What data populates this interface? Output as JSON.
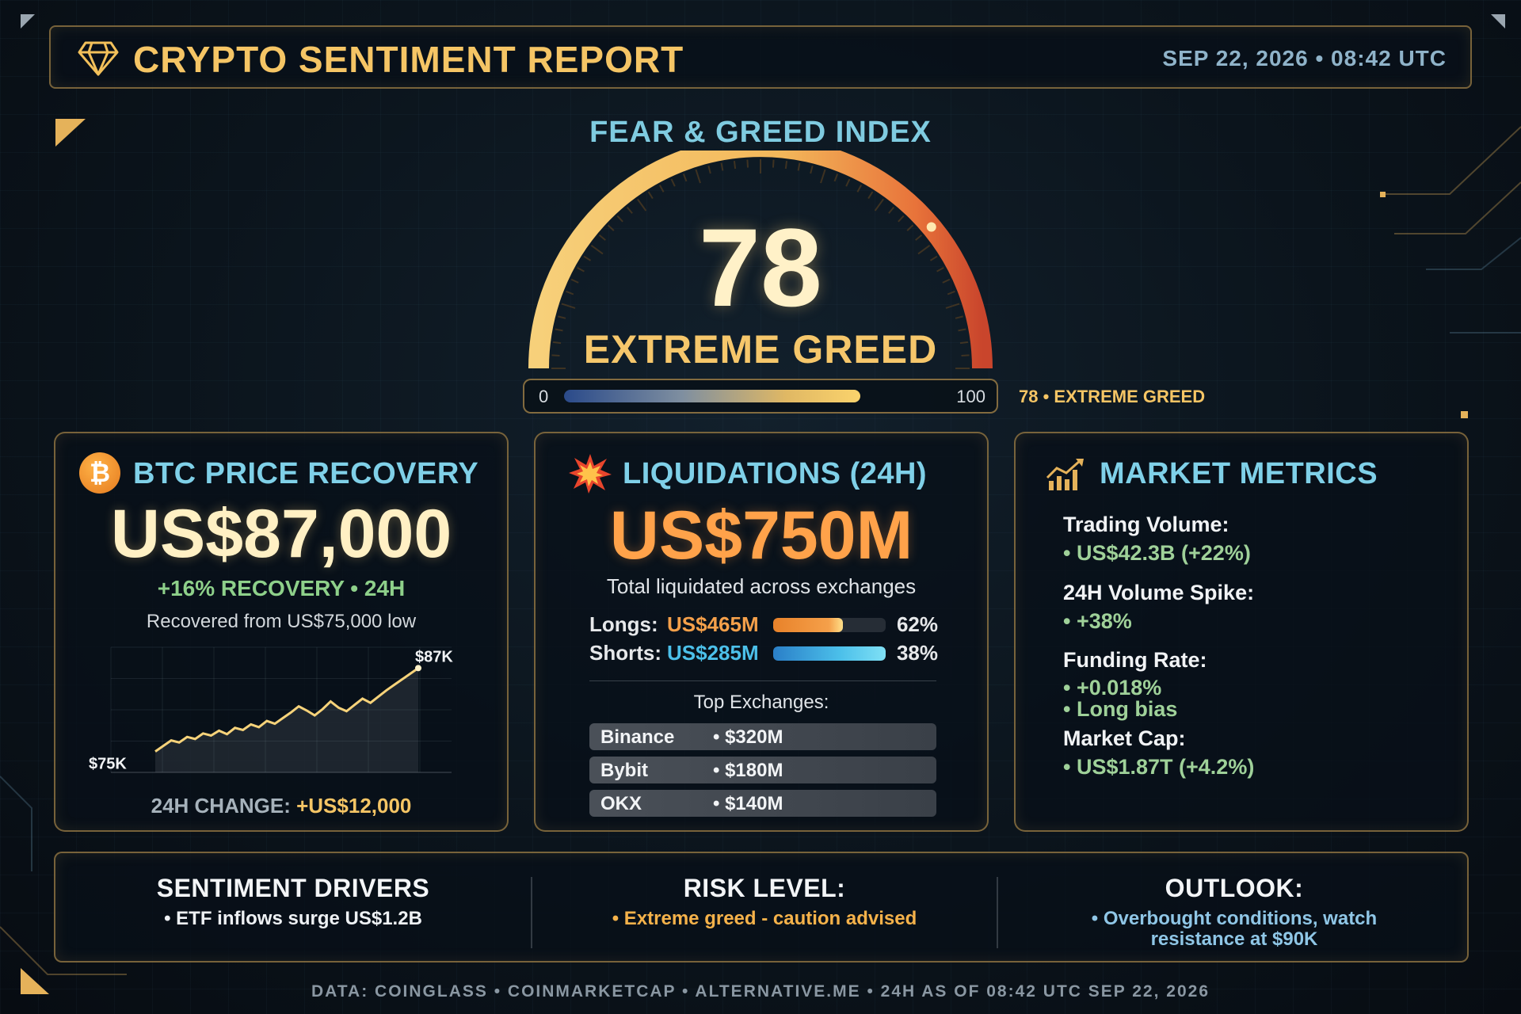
{
  "header": {
    "title": "CRYPTO SENTIMENT REPORT",
    "timestamp": "SEP 22, 2026 • 08:42 UTC",
    "icon": "diamond-icon"
  },
  "gauge": {
    "title": "FEAR & GREED INDEX",
    "value": "78",
    "value_number": 78,
    "label": "EXTREME GREED",
    "scale_min": "0",
    "scale_max": "100",
    "caption": "78 • EXTREME GREED"
  },
  "btc": {
    "title": "BTC PRICE RECOVERY",
    "icon": "bitcoin-icon",
    "price": "US$87,000",
    "recovery": "+16% RECOVERY • 24H",
    "from": "Recovered from US$75,000 low",
    "change_label": "24H CHANGE:",
    "change_value": "+US$12,000"
  },
  "chart_data": {
    "type": "area",
    "title": "",
    "xlabel": "",
    "ylabel": "",
    "start_label": "$75K",
    "end_label": "$87K",
    "ylim": [
      72,
      90
    ],
    "y": [
      75.0,
      75.8,
      76.6,
      76.3,
      77.1,
      76.8,
      77.6,
      77.3,
      78.0,
      77.5,
      78.4,
      78.1,
      78.9,
      78.5,
      79.4,
      79.0,
      79.8,
      80.6,
      81.5,
      80.9,
      80.2,
      81.1,
      82.2,
      81.3,
      80.8,
      81.7,
      82.6,
      82.0,
      82.9,
      83.8,
      84.6,
      85.4,
      86.2,
      87.0
    ],
    "grid": true
  },
  "liquidations": {
    "title": "LIQUIDATIONS (24H)",
    "icon": "explosion-icon",
    "total": "US$750M",
    "subtitle": "Total liquidated across exchanges",
    "longs": {
      "label": "Longs:",
      "value": "US$465M",
      "pct": "62%",
      "fraction": 0.62,
      "color": "#f5a04a"
    },
    "shorts": {
      "label": "Shorts:",
      "value": "US$285M",
      "pct": "38%",
      "fraction": 0.38,
      "color": "#4cc0ea"
    },
    "top_title": "Top Exchanges:",
    "exchanges": [
      {
        "name": "Binance",
        "amount": "• $320M"
      },
      {
        "name": "Bybit",
        "amount": "• $180M"
      },
      {
        "name": "OKX",
        "amount": "• $140M"
      }
    ]
  },
  "metrics": {
    "title": "MARKET METRICS",
    "icon": "chart-growth-icon",
    "items": [
      {
        "label": "Trading Volume:",
        "values": [
          "• US$42.3B (+22%)"
        ]
      },
      {
        "label": "24H Volume Spike:",
        "values": [
          "• +38%"
        ]
      },
      {
        "label": "Funding Rate:",
        "values": [
          "• +0.018%",
          "• Long bias"
        ]
      },
      {
        "label": "Market Cap:",
        "values": [
          "• US$1.87T (+4.2%)"
        ]
      }
    ]
  },
  "bottom": {
    "drivers": {
      "title": "SENTIMENT DRIVERS",
      "text": "• ETF inflows surge US$1.2B",
      "color": "#eef1f4"
    },
    "risk": {
      "title": "RISK LEVEL:",
      "text": "• Extreme greed - caution advised",
      "color": "#f5b24a"
    },
    "outlook": {
      "title": "OUTLOOK:",
      "line1": "• Overbought conditions, watch",
      "line2": "resistance at $90K",
      "color": "#8fc6e6"
    }
  },
  "footer": "DATA: COINGLASS • COINMARKETCAP • ALTERNATIVE.ME • 24H AS OF 08:42 UTC SEP 22, 2026"
}
